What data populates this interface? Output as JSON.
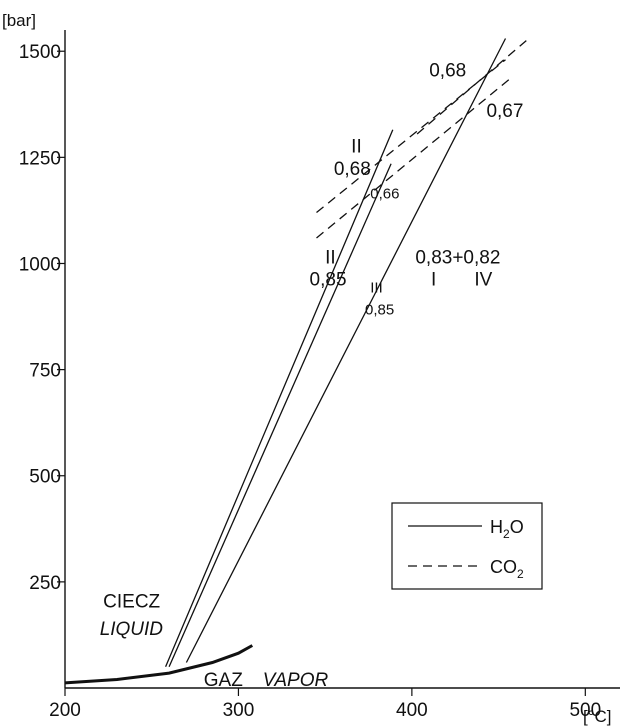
{
  "chart_data": {
    "type": "line",
    "title": "",
    "xlabel": "",
    "ylabel": "",
    "x_unit": "[°C]",
    "y_unit": "[bar]",
    "xlim": [
      200,
      520
    ],
    "ylim": [
      0,
      1550
    ],
    "x_ticks": [
      200,
      300,
      400,
      500
    ],
    "y_ticks": [
      250,
      500,
      750,
      1000,
      1250,
      1500
    ],
    "grid": false,
    "legend_position": "bottom-right",
    "legend": [
      {
        "label_main": "H",
        "label_sub": "2",
        "label_tail": "O",
        "style": "solid"
      },
      {
        "label_main": "CO",
        "label_sub": "2",
        "label_tail": "",
        "style": "dashed"
      }
    ],
    "series": [
      {
        "style": "solid",
        "width": 1.3,
        "points": [
          [
            258,
            50
          ],
          [
            389,
            1315
          ]
        ]
      },
      {
        "style": "solid",
        "width": 1.3,
        "points": [
          [
            260,
            50
          ],
          [
            388,
            1235
          ]
        ]
      },
      {
        "style": "solid",
        "width": 1.3,
        "points": [
          [
            270,
            60
          ],
          [
            454,
            1530
          ]
        ]
      },
      {
        "style": "dashed",
        "width": 1.3,
        "points": [
          [
            345,
            1120
          ],
          [
            454,
            1480
          ]
        ]
      },
      {
        "style": "dashed",
        "width": 1.3,
        "points": [
          [
            345,
            1060
          ],
          [
            458,
            1440
          ]
        ]
      },
      {
        "style": "dashed",
        "width": 1.3,
        "points": [
          [
            403,
            1305
          ],
          [
            466,
            1525
          ]
        ]
      },
      {
        "style": "solid",
        "width": 3,
        "points": [
          [
            200,
            12
          ],
          [
            230,
            20
          ],
          [
            260,
            35
          ],
          [
            285,
            60
          ],
          [
            300,
            82
          ],
          [
            308,
            100
          ]
        ]
      }
    ],
    "annotations": [
      {
        "text": "II",
        "x": 365,
        "y": 1262,
        "size": "normal",
        "anchor": "start"
      },
      {
        "text": "0,68",
        "x": 355,
        "y": 1208,
        "size": "normal",
        "anchor": "start"
      },
      {
        "text": "0,66",
        "x": 376,
        "y": 1153,
        "size": "small",
        "anchor": "start"
      },
      {
        "text": "II",
        "x": 350,
        "y": 1000,
        "size": "normal",
        "anchor": "start"
      },
      {
        "text": "0,85",
        "x": 341,
        "y": 948,
        "size": "normal",
        "anchor": "start"
      },
      {
        "text": "III",
        "x": 376,
        "y": 932,
        "size": "small",
        "anchor": "start"
      },
      {
        "text": "0,85",
        "x": 373,
        "y": 880,
        "size": "small",
        "anchor": "start"
      },
      {
        "text": "0,83+0,82",
        "x": 402,
        "y": 1000,
        "size": "normal",
        "anchor": "start"
      },
      {
        "text": "I",
        "x": 411,
        "y": 948,
        "size": "normal",
        "anchor": "start"
      },
      {
        "text": "IV",
        "x": 436,
        "y": 948,
        "size": "normal",
        "anchor": "start"
      },
      {
        "text": "0,68",
        "x": 410,
        "y": 1440,
        "size": "normal",
        "anchor": "start"
      },
      {
        "text": "0,67",
        "x": 443,
        "y": 1345,
        "size": "normal",
        "anchor": "start"
      },
      {
        "text": "CIECZ",
        "x": 222,
        "y": 190,
        "size": "normal",
        "anchor": "start"
      },
      {
        "text": "LIQUID",
        "x": 220,
        "y": 125,
        "size": "normal",
        "anchor": "start",
        "italic": true
      },
      {
        "text": "GAZ",
        "x": 280,
        "y": 5,
        "size": "normal",
        "anchor": "start"
      },
      {
        "text": "VAPOR",
        "x": 314,
        "y": 5,
        "size": "normal",
        "anchor": "start",
        "italic": true
      }
    ]
  }
}
